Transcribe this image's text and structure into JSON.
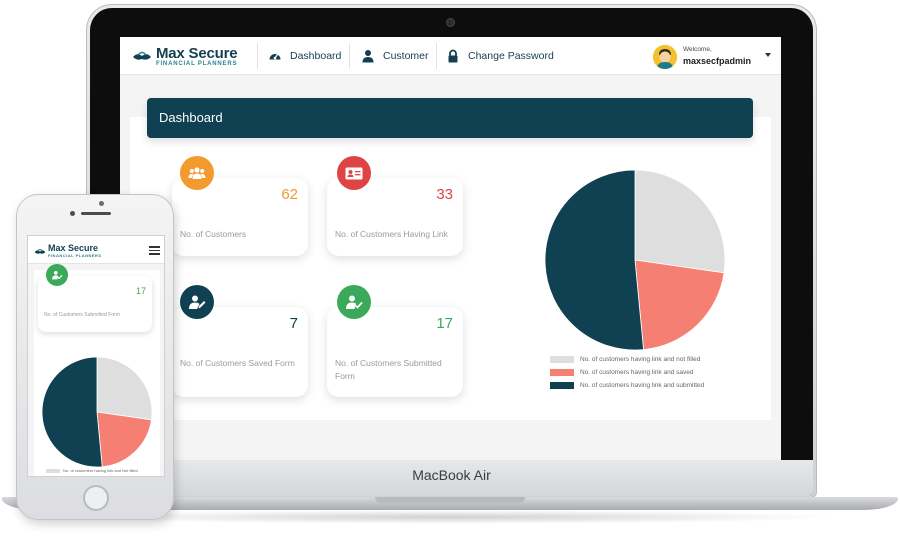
{
  "laptop": {
    "model_label": "MacBook Air"
  },
  "brand": {
    "name": "Max Secure",
    "tagline": "FINANCIAL PLANNERS"
  },
  "nav": {
    "items": [
      {
        "label": "Dashboard",
        "icon": "dashboard-gauge-icon"
      },
      {
        "label": "Customer",
        "icon": "user-icon"
      },
      {
        "label": "Change Password",
        "icon": "lock-icon"
      }
    ],
    "user": {
      "welcome": "Welcome,",
      "username": "maxsecfpadmin",
      "avatar": "user-avatar",
      "menu_icon": "caret-down-icon"
    }
  },
  "page": {
    "title": "Dashboard"
  },
  "stats": [
    {
      "value": "62",
      "label": "No. of Customers",
      "color": "#f29a2e",
      "icon": "users-icon"
    },
    {
      "value": "33",
      "label": "No. of Customers Having Link",
      "color": "#de4444",
      "icon": "id-card-icon"
    },
    {
      "value": "7",
      "label": "No. of Customers Saved Form",
      "color": "#0f4152",
      "icon": "user-edit-icon"
    },
    {
      "value": "17",
      "label": "No. of Customers Submitted Form",
      "color": "#3aa95a",
      "icon": "user-check-icon"
    }
  ],
  "chart_data": {
    "type": "pie",
    "categories": [
      "No. of customers having link and not filled",
      "No.  of customers having link and saved",
      "No.  of customers having link and submitted"
    ],
    "values": [
      9,
      7,
      17
    ],
    "colors": [
      "#dedede",
      "#f47f72",
      "#0f4152"
    ],
    "legend_position": "bottom"
  },
  "mobile": {
    "card": {
      "value": "17",
      "label": "No. of Customers Submitted Form",
      "color": "#3aa95a",
      "icon": "user-check-icon"
    },
    "menu_icon": "hamburger-menu-icon",
    "legend_first": "No. of customers having link and Not filled"
  }
}
